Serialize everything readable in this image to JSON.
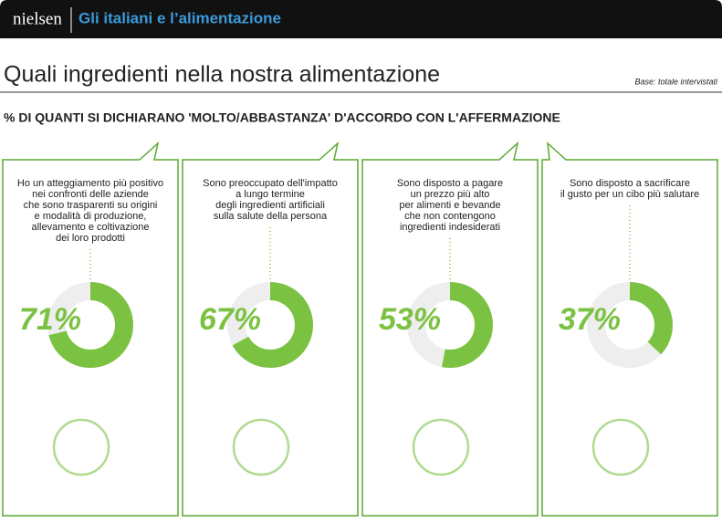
{
  "header": {
    "brand": "nielsen",
    "title": "Gli italiani e l’alimentazione"
  },
  "heading": "Quali ingredienti nella nostra alimentazione",
  "base": "Base: totale intervistati",
  "subheading": "% DI QUANTI SI DICHIARANO 'MOLTO/ABBASTANZA' D'ACCORDO CON L'AFFERMAZIONE",
  "chart_data": [
    {
      "type": "donut",
      "title": [
        "Ho un atteggiamento più positivo",
        "nei confronti delle aziende",
        "che sono trasparenti su origini",
        "e modalità di produzione,",
        "allevamento e coltivazione",
        "dei loro prodotti"
      ],
      "values": [
        71
      ],
      "value_labels": [
        "71%"
      ],
      "color": "#7cc242"
    },
    {
      "type": "donut",
      "title": [
        "Sono preoccupato dell'impatto",
        "a lungo termine",
        "degli ingredienti artificiali",
        "sulla salute della persona"
      ],
      "values": [
        67
      ],
      "value_labels": [
        "67%"
      ],
      "color": "#7cc242"
    },
    {
      "type": "donut",
      "title": [
        "Sono disposto a pagare",
        "un prezzo più alto",
        "per alimenti e bevande",
        "che non contengono",
        "ingredienti indesiderati"
      ],
      "values": [
        53
      ],
      "value_labels": [
        "53%"
      ],
      "color": "#7cc242"
    },
    {
      "type": "donut",
      "title": [
        "Sono disposto a sacrificare",
        "il gusto per un cibo più salutare"
      ],
      "values": [
        37
      ],
      "value_labels": [
        "37%"
      ],
      "color": "#7cc242"
    }
  ]
}
